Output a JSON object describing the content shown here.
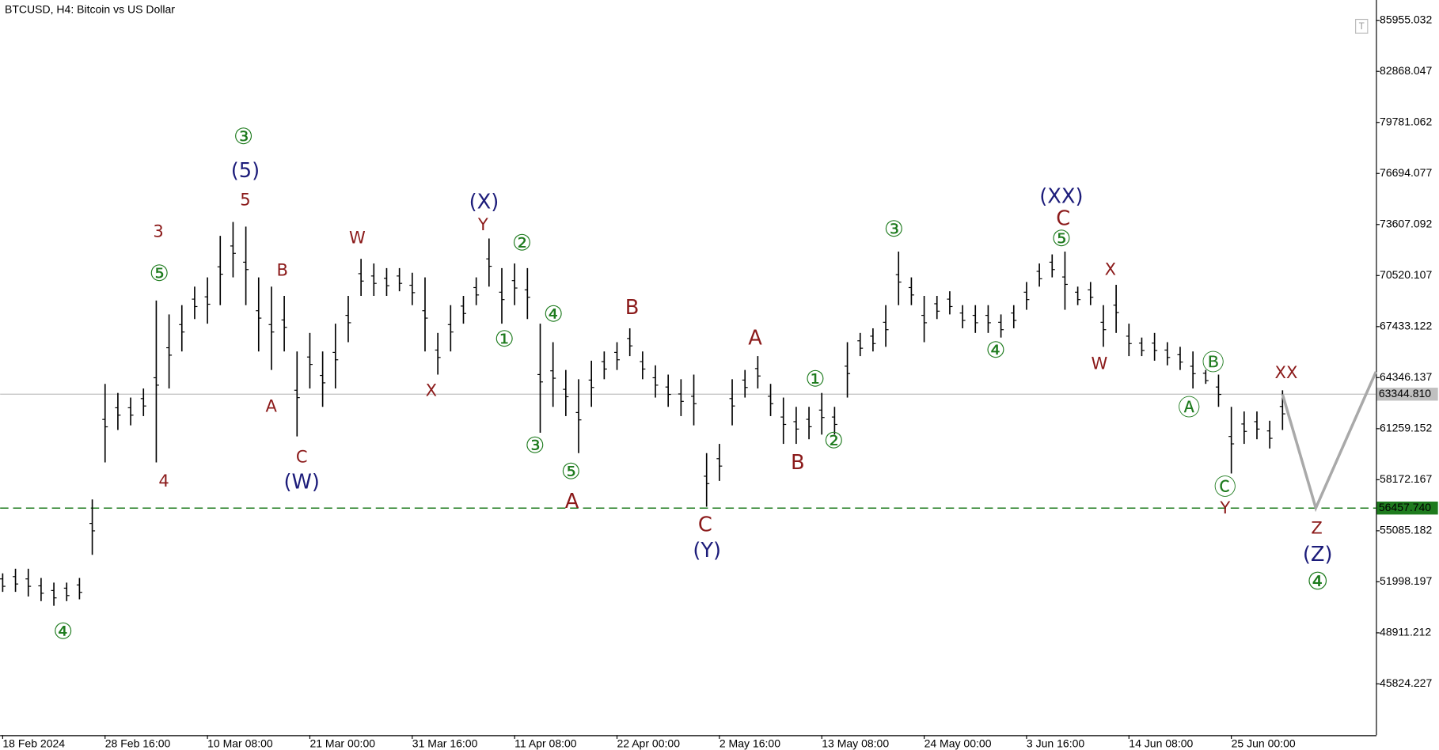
{
  "chart_data": {
    "type": "range_bar",
    "title": "BTCUSD, H4:  Bitcoin vs US Dollar",
    "color": "#000000",
    "categories": [
      "18 Feb 2024",
      null,
      null,
      null,
      null,
      null,
      null,
      null,
      "28 Feb 16:00",
      null,
      null,
      null,
      null,
      null,
      null,
      null,
      "10 Mar 08:00",
      null,
      null,
      null,
      null,
      null,
      null,
      null,
      "21 Mar 00:00",
      null,
      null,
      null,
      null,
      null,
      null,
      null,
      "31 Mar 16:00",
      null,
      null,
      null,
      null,
      null,
      null,
      null,
      "11 Apr 08:00",
      null,
      null,
      null,
      null,
      null,
      null,
      null,
      "22 Apr 00:00",
      null,
      null,
      null,
      null,
      null,
      null,
      null,
      "2 May 16:00",
      null,
      null,
      null,
      null,
      null,
      null,
      null,
      "13 May 08:00",
      null,
      null,
      null,
      null,
      null,
      null,
      null,
      "24 May 00:00",
      null,
      null,
      null,
      null,
      null,
      null,
      null,
      "3 Jun 16:00",
      null,
      null,
      null,
      null,
      null,
      null,
      null,
      "14 Jun 08:00",
      null,
      null,
      null,
      null,
      null,
      null,
      null,
      "25 Jun 00:00",
      null,
      null,
      null,
      null
    ],
    "high": [
      52510,
      52790,
      52790,
      52230,
      51950,
      51950,
      52230,
      56980,
      63970,
      63420,
      63140,
      63690,
      69010,
      68170,
      68730,
      69850,
      70410,
      72920,
      73760,
      73480,
      70410,
      69850,
      69290,
      65930,
      67050,
      65930,
      67610,
      69290,
      71530,
      71250,
      70970,
      70970,
      70690,
      70410,
      67050,
      68730,
      69290,
      70410,
      72760,
      70970,
      71250,
      70970,
      67610,
      66490,
      64810,
      64250,
      65370,
      65930,
      66490,
      67330,
      65930,
      65090,
      64530,
      64250,
      64530,
      59780,
      60340,
      64250,
      64810,
      65650,
      63970,
      63140,
      62580,
      62580,
      63420,
      62580,
      66490,
      67050,
      67330,
      68730,
      71970,
      70410,
      69290,
      69290,
      69570,
      68730,
      68730,
      68730,
      68170,
      68730,
      70130,
      71250,
      71800,
      71970,
      69850,
      70130,
      68730,
      69960,
      67610,
      66770,
      67050,
      66490,
      66210,
      65930,
      64810,
      64530,
      62580,
      62300,
      62300,
      61740,
      63580
    ],
    "low": [
      51390,
      51390,
      51110,
      50830,
      50550,
      50830,
      50940,
      53630,
      59220,
      61180,
      61460,
      62020,
      59220,
      63690,
      65930,
      67890,
      67610,
      68730,
      70410,
      68730,
      65930,
      64810,
      65930,
      60790,
      63690,
      62580,
      63690,
      66490,
      69290,
      69290,
      69290,
      69570,
      68730,
      65930,
      64530,
      65930,
      67610,
      68730,
      69850,
      67610,
      68730,
      67890,
      61010,
      62580,
      62020,
      59780,
      62580,
      64250,
      64810,
      65650,
      64250,
      63140,
      62580,
      62020,
      61460,
      56540,
      58100,
      61460,
      63140,
      63690,
      62020,
      60340,
      60340,
      60620,
      60900,
      60900,
      63140,
      65650,
      65930,
      66210,
      68730,
      68730,
      66490,
      67890,
      68170,
      67330,
      67050,
      67050,
      66770,
      67330,
      68450,
      69850,
      70410,
      68450,
      68730,
      68730,
      66210,
      67050,
      65650,
      65650,
      65370,
      65090,
      64810,
      63690,
      63970,
      62580,
      58550,
      60340,
      60620,
      60060,
      61180
    ],
    "xlim": [
      -0.2,
      107.3
    ],
    "ylim": [
      42721,
      87185
    ],
    "yticks": [
      85955.032,
      82868.047,
      79781.062,
      76694.077,
      73607.092,
      70520.107,
      67433.122,
      64346.137,
      61259.152,
      58172.167,
      55085.182,
      51998.197,
      48911.212,
      45824.227
    ],
    "hlines": [
      {
        "value": 63344.81,
        "label": "63344.810",
        "color": "#c0c0c0",
        "style": "solid"
      },
      {
        "value": 56457.74,
        "label": "56457.740",
        "color": "#1e7b1e",
        "style": "dashed"
      }
    ],
    "projection": {
      "color": "#a9a9a9",
      "x": [
        100,
        102.6,
        107.3
      ],
      "values": [
        63340,
        56460,
        64700
      ]
    },
    "annotations": [
      {
        "text": "③",
        "color": "#1e7b1e"
      },
      {
        "text": "(5)",
        "color": "#1c1c7a"
      },
      {
        "text": "5",
        "color": "#8b1a1a"
      },
      {
        "text": "3",
        "color": "#8b1a1a"
      },
      {
        "text": "⑤",
        "color": "#1e7b1e"
      },
      {
        "text": "B",
        "color": "#8b1a1a"
      },
      {
        "text": "A",
        "color": "#8b1a1a"
      },
      {
        "text": "4",
        "color": "#8b1a1a"
      },
      {
        "text": "C",
        "color": "#8b1a1a"
      },
      {
        "text": "(W)",
        "color": "#1c1c7a"
      },
      {
        "text": "④",
        "color": "#1e7b1e"
      },
      {
        "text": "W",
        "color": "#8b1a1a"
      },
      {
        "text": "X",
        "color": "#8b1a1a"
      },
      {
        "text": "(X)",
        "color": "#1c1c7a"
      },
      {
        "text": "Y",
        "color": "#8b1a1a"
      },
      {
        "text": "②",
        "color": "#1e7b1e"
      },
      {
        "text": "①",
        "color": "#1e7b1e"
      },
      {
        "text": "④",
        "color": "#1e7b1e"
      },
      {
        "text": "③",
        "color": "#1e7b1e"
      },
      {
        "text": "⑤",
        "color": "#1e7b1e"
      },
      {
        "text": "A",
        "color": "#8b1a1a"
      },
      {
        "text": "B",
        "color": "#8b1a1a"
      },
      {
        "text": "C",
        "color": "#8b1a1a"
      },
      {
        "text": "(Y)",
        "color": "#1c1c7a"
      },
      {
        "text": "A",
        "color": "#8b1a1a"
      },
      {
        "text": "①",
        "color": "#1e7b1e"
      },
      {
        "text": "②",
        "color": "#1e7b1e"
      },
      {
        "text": "B",
        "color": "#8b1a1a"
      },
      {
        "text": "③",
        "color": "#1e7b1e"
      },
      {
        "text": "④",
        "color": "#1e7b1e"
      },
      {
        "text": "(XX)",
        "color": "#1c1c7a"
      },
      {
        "text": "C",
        "color": "#8b1a1a"
      },
      {
        "text": "⑤",
        "color": "#1e7b1e"
      },
      {
        "text": "X",
        "color": "#8b1a1a"
      },
      {
        "text": "W",
        "color": "#8b1a1a"
      },
      {
        "text": "Ⓑ",
        "color": "#1e7b1e"
      },
      {
        "text": "Ⓐ",
        "color": "#1e7b1e"
      },
      {
        "text": "Ⓒ",
        "color": "#1e7b1e"
      },
      {
        "text": "Y",
        "color": "#8b1a1a"
      },
      {
        "text": "XX",
        "color": "#8b1a1a"
      },
      {
        "text": "Z",
        "color": "#8b1a1a"
      },
      {
        "text": "(Z)",
        "color": "#1c1c7a"
      },
      {
        "text": "④",
        "color": "#1e7b1e"
      }
    ]
  }
}
